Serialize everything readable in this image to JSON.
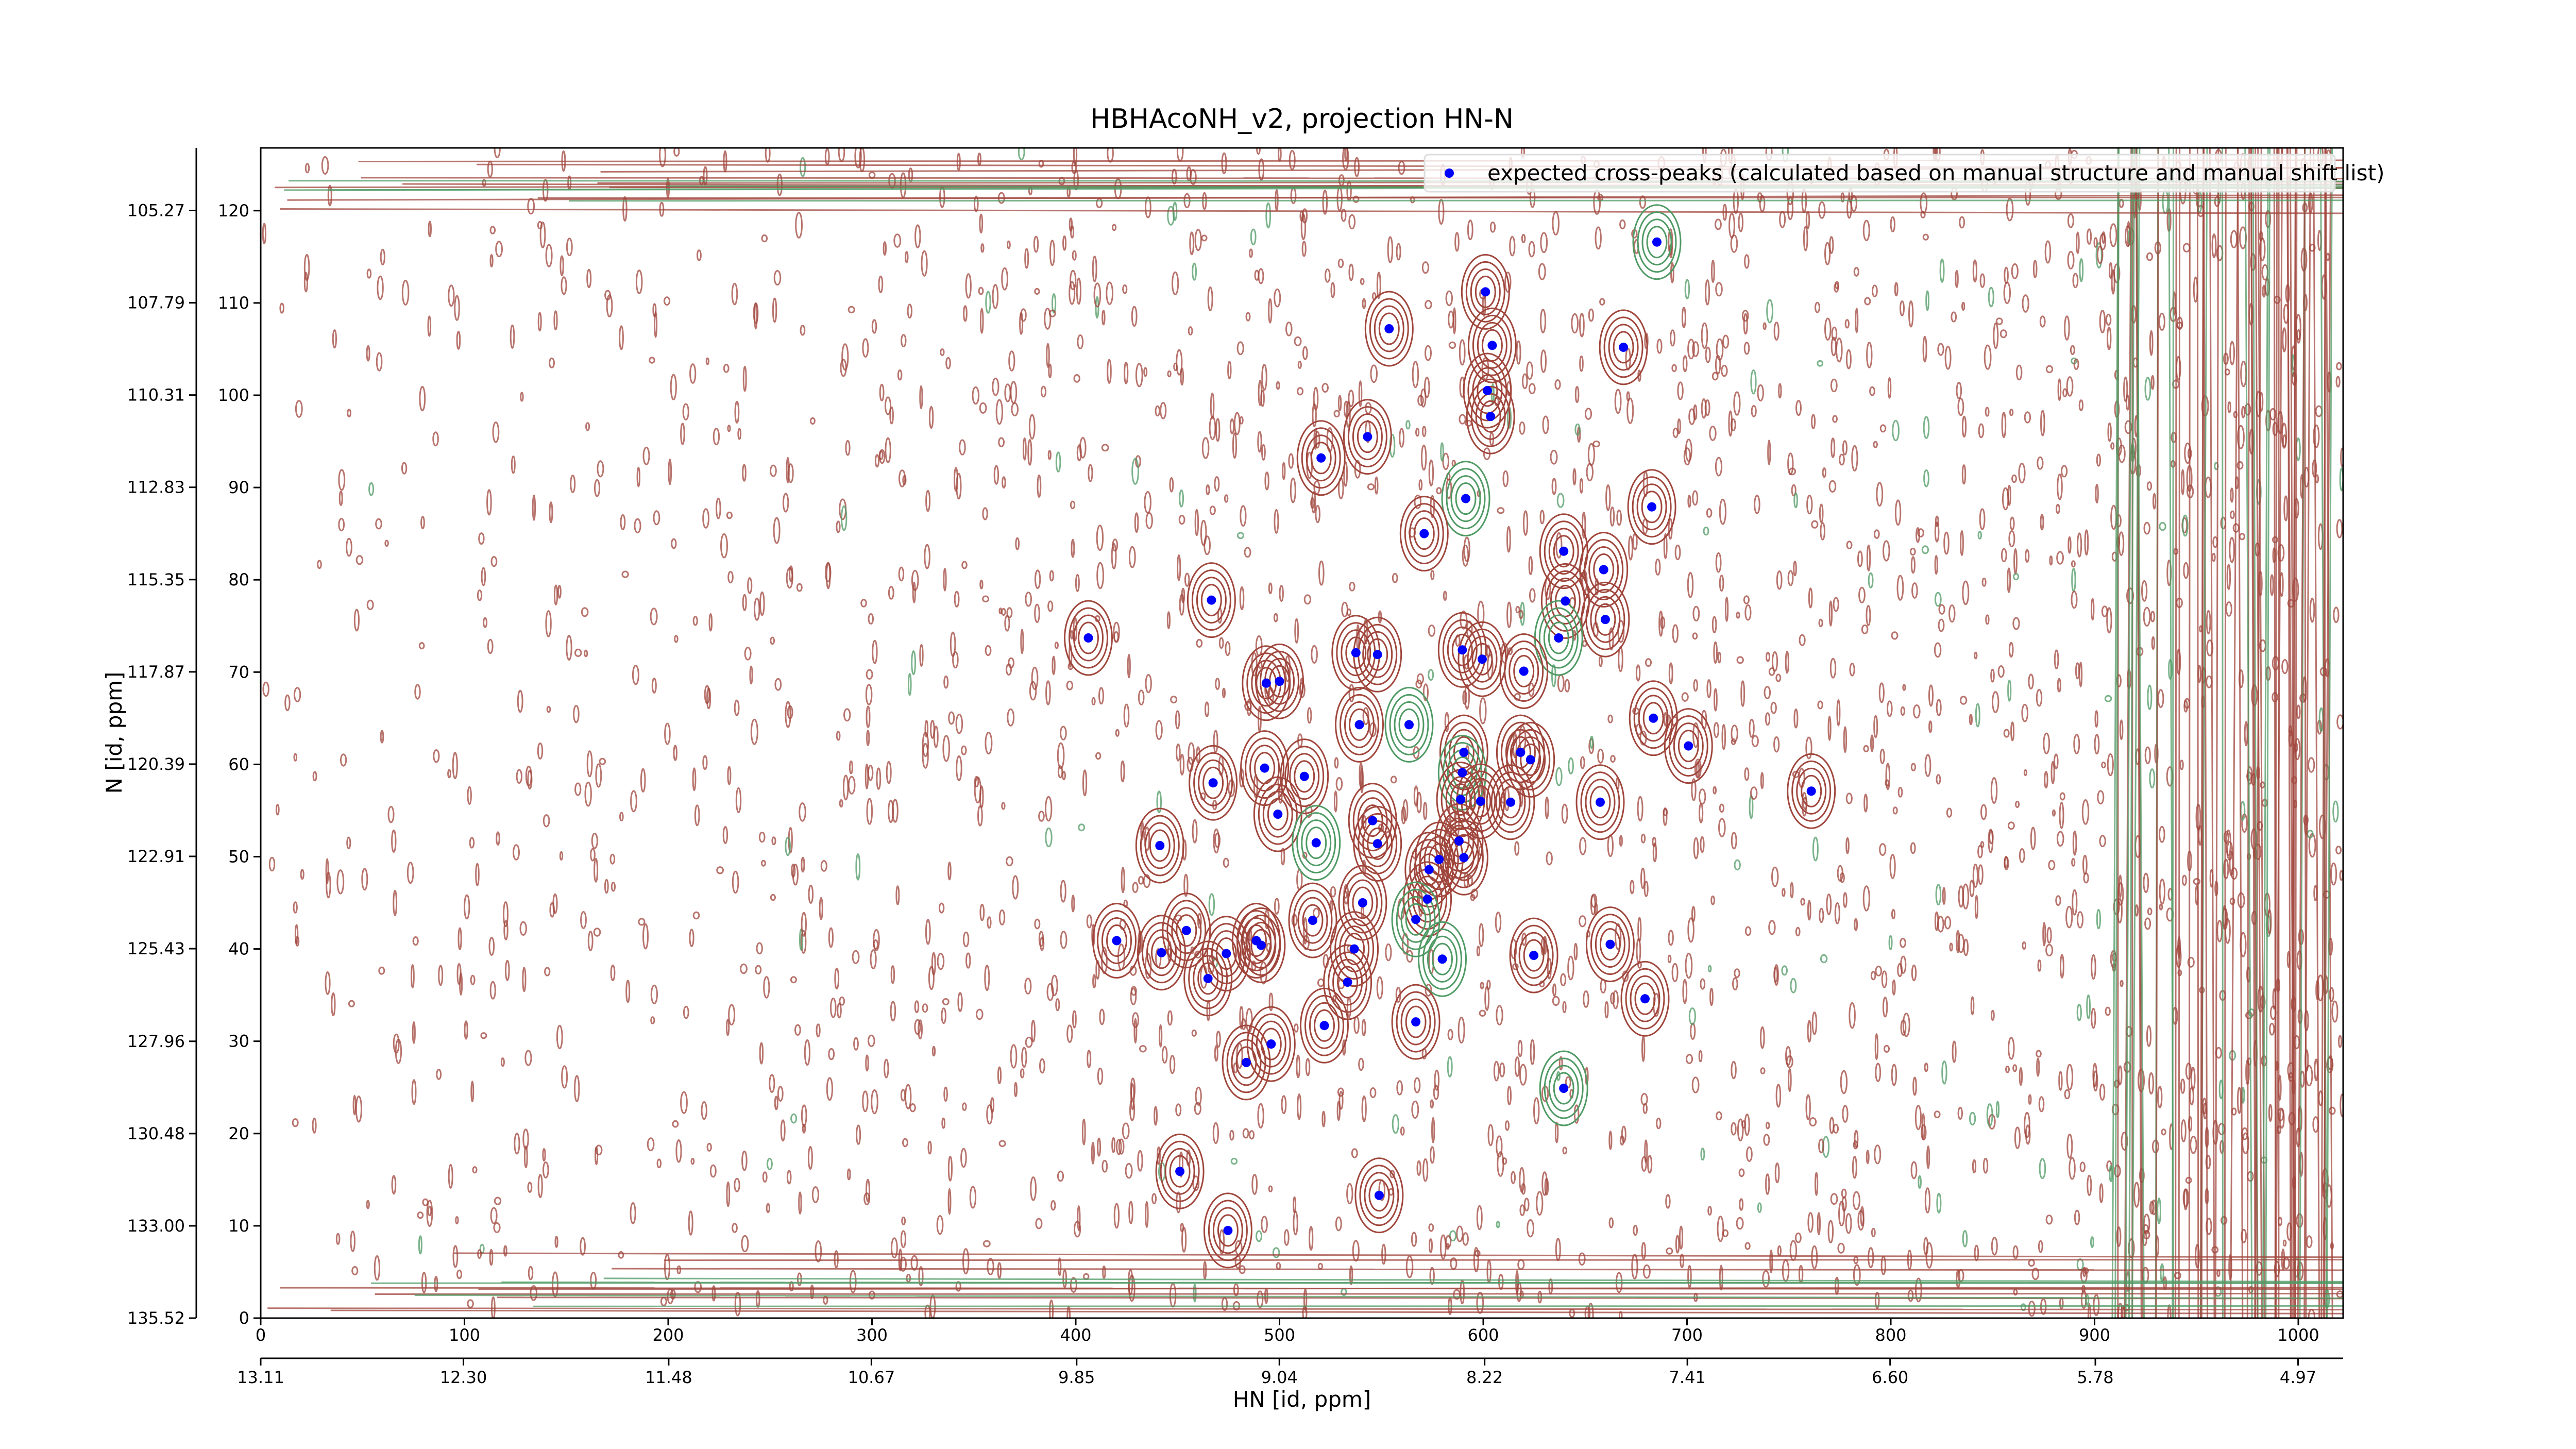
{
  "chart_data": {
    "type": "scatter",
    "title": "HBHAcoNH_v2, projection HN-N",
    "xlabel": "HN [id, ppm]",
    "ylabel": "N [id, ppm]",
    "xlim": [
      0,
      1022
    ],
    "ylim": [
      0,
      126.8
    ],
    "xticks": [
      0,
      100,
      200,
      300,
      400,
      500,
      600,
      700,
      800,
      900,
      1000
    ],
    "yticks": [
      0,
      10,
      20,
      30,
      40,
      50,
      60,
      70,
      80,
      90,
      100,
      110,
      120
    ],
    "x2lim": [
      13.11,
      4.79
    ],
    "x2ticks": [
      13.11,
      {
        "value": 12.3,
        "label": "12.30"
      },
      11.48,
      10.67,
      9.85,
      9.04,
      8.22,
      7.41,
      {
        "value": 6.6,
        "label": "6.60"
      },
      5.78,
      4.97
    ],
    "y2lim": [
      135.52,
      103.56
    ],
    "y2ticks": [
      135.52,
      {
        "value": 133,
        "label": "133.00"
      },
      130.48,
      127.96,
      125.43,
      122.91,
      120.39,
      117.87,
      115.35,
      112.83,
      110.31,
      107.79,
      105.27
    ],
    "legend": "upper right",
    "series": [
      {
        "name": "expected cross-peaks (calculated based on manual structure and manual shift list)",
        "color": "#0000ff",
        "x": [
          685.2,
          601.1,
          553.8,
          604.4,
          668.8,
          602.0,
          603.6,
          520.4,
          543.2,
          591.4,
          682.7,
          571.0,
          639.5,
          659.1,
          466.6,
          640.3,
          659.9,
          406.2,
          637.0,
          537.5,
          548.1,
          589.7,
          599.5,
          619.9,
          493.5,
          500.0,
          539.2,
          563.6,
          683.5,
          700.7,
          590.5,
          618.3,
          623.2,
          492.7,
          512.2,
          467.4,
          589.7,
          588.9,
          598.7,
          613.4,
          499.2,
          657.4,
          761.0,
          545.7,
          441.3,
          518.0,
          548.1,
          588.1,
          590.5,
          578.3,
          573.4,
          572.6,
          540.8,
          516.3,
          566.9,
          454.3,
          420.1,
          488.6,
          491.0,
          442.1,
          473.9,
          536.7,
          662.3,
          579.9,
          624.8,
          464.9,
          533.4,
          679.4,
          566.9,
          522.0,
          495.9,
          483.7,
          639.5,
          451.1,
          548.9,
          474.7
        ],
        "values": [
          116.6,
          111.2,
          107.2,
          105.4,
          105.2,
          100.5,
          97.7,
          93.2,
          95.5,
          88.8,
          87.9,
          85.0,
          83.1,
          81.1,
          77.8,
          77.7,
          75.7,
          73.7,
          73.7,
          72.1,
          71.9,
          72.4,
          71.4,
          70.1,
          68.8,
          69.0,
          64.3,
          64.3,
          65.0,
          62.0,
          61.3,
          61.3,
          60.5,
          59.6,
          58.7,
          58.0,
          59.1,
          56.2,
          56.0,
          55.9,
          54.6,
          55.9,
          57.1,
          53.9,
          51.2,
          51.5,
          51.4,
          51.7,
          49.9,
          49.7,
          48.6,
          45.4,
          45.0,
          43.1,
          43.2,
          42.0,
          40.9,
          40.9,
          40.4,
          39.6,
          39.5,
          40.0,
          40.5,
          38.9,
          39.3,
          36.8,
          36.4,
          34.6,
          32.1,
          31.7,
          29.7,
          27.7,
          24.9,
          15.9,
          13.3,
          9.5
        ]
      }
    ]
  }
}
